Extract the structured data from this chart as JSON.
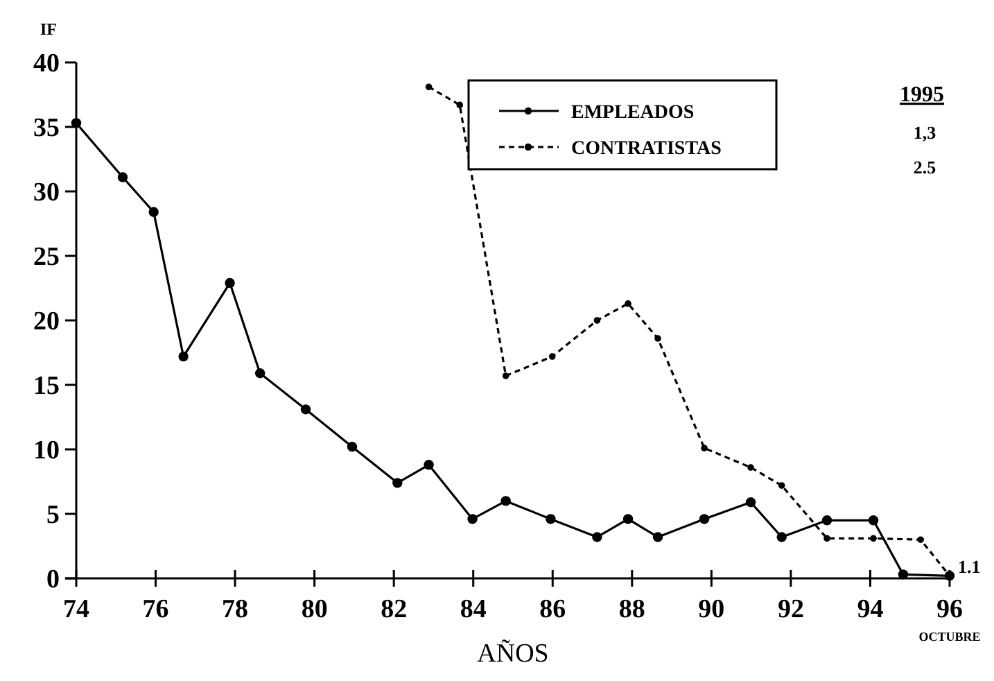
{
  "chart_data": {
    "type": "line",
    "xlabel": "AÑOS",
    "ylabel": "IF",
    "xlim": [
      74,
      96
    ],
    "xticks": [
      74,
      76,
      78,
      80,
      82,
      84,
      86,
      88,
      90,
      92,
      94,
      96
    ],
    "ylim": [
      0,
      40
    ],
    "yticks": [
      0,
      5,
      10,
      15,
      20,
      25,
      30,
      35,
      40
    ],
    "grid": false,
    "legend": "top right",
    "marker": "circle",
    "series": [
      {
        "name": "EMPLEADOS",
        "color": "#000000",
        "line_style": "solid",
        "x": [
          74.0,
          75.17,
          75.95,
          76.7,
          77.87,
          78.63,
          79.78,
          80.95,
          82.09,
          82.88,
          83.98,
          84.82,
          85.95,
          87.12,
          87.9,
          88.65,
          89.82,
          90.99,
          91.77,
          92.91,
          94.08,
          94.83,
          96.0
        ],
        "values": [
          35.3,
          31.1,
          28.4,
          17.2,
          22.9,
          15.9,
          13.1,
          10.2,
          7.4,
          8.8,
          4.6,
          6.0,
          4.6,
          3.2,
          4.6,
          3.2,
          4.6,
          5.9,
          3.2,
          4.5,
          4.5,
          0.3,
          0.2
        ]
      },
      {
        "name": "CONTRATISTAS",
        "color": "#000000",
        "line_style": "dashed",
        "x": [
          82.88,
          83.66,
          84.82,
          85.99,
          87.12,
          87.9,
          88.65,
          89.82,
          90.99,
          91.77,
          92.91,
          94.08,
          95.27,
          96.0
        ],
        "values": [
          38.1,
          36.7,
          15.7,
          17.2,
          20.0,
          21.3,
          18.6,
          10.1,
          8.6,
          7.2,
          3.1,
          3.1,
          3.0,
          0.2
        ]
      }
    ],
    "annotations": [
      "1995",
      "1,3",
      "2.5",
      "1.1",
      "OCTUBRE"
    ]
  }
}
